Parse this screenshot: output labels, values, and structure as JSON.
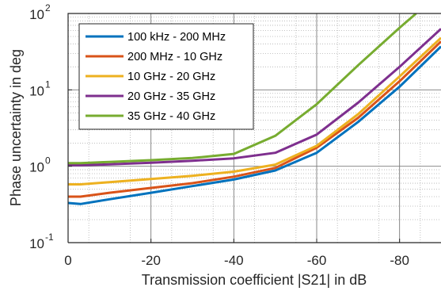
{
  "chart_data": {
    "type": "line",
    "title": "",
    "xlabel": "Transmission coefficient |S21| in dB",
    "ylabel": "Phase uncertainty in deg",
    "xlim": [
      0,
      -90
    ],
    "ylim": [
      0.1,
      100
    ],
    "yscale": "log",
    "grid": true,
    "minor_grid": true,
    "legend_position": "top-left",
    "x_ticks": [
      "0",
      "-20",
      "-40",
      "-60",
      "-80"
    ],
    "x_tick_values": [
      0,
      -20,
      -40,
      -60,
      -80
    ],
    "y_ticks": [
      {
        "value": 0.1,
        "base": "10",
        "exp": "-1"
      },
      {
        "value": 1,
        "base": "10",
        "exp": "0"
      },
      {
        "value": 10,
        "base": "10",
        "exp": "1"
      },
      {
        "value": 100,
        "base": "10",
        "exp": "2"
      }
    ],
    "series": [
      {
        "name": "100 kHz - 200 MHz",
        "color": "#0072BD",
        "points": [
          [
            0,
            0.33
          ],
          [
            -3,
            0.32
          ],
          [
            -10,
            0.37
          ],
          [
            -20,
            0.45
          ],
          [
            -30,
            0.55
          ],
          [
            -40,
            0.67
          ],
          [
            -50,
            0.88
          ],
          [
            -60,
            1.5
          ],
          [
            -70,
            3.8
          ],
          [
            -80,
            11
          ],
          [
            -90,
            37
          ]
        ]
      },
      {
        "name": "200 MHz - 10 GHz",
        "color": "#D95319",
        "points": [
          [
            0,
            0.4
          ],
          [
            -3,
            0.4
          ],
          [
            -10,
            0.45
          ],
          [
            -20,
            0.52
          ],
          [
            -30,
            0.6
          ],
          [
            -40,
            0.73
          ],
          [
            -50,
            0.95
          ],
          [
            -60,
            1.75
          ],
          [
            -70,
            4.3
          ],
          [
            -80,
            13
          ],
          [
            -90,
            43
          ]
        ]
      },
      {
        "name": "10 GHz - 20 GHz",
        "color": "#EDB120",
        "points": [
          [
            0,
            0.58
          ],
          [
            -3,
            0.58
          ],
          [
            -10,
            0.62
          ],
          [
            -20,
            0.68
          ],
          [
            -30,
            0.75
          ],
          [
            -40,
            0.85
          ],
          [
            -50,
            1.05
          ],
          [
            -60,
            1.85
          ],
          [
            -70,
            4.8
          ],
          [
            -80,
            15
          ],
          [
            -90,
            48
          ]
        ]
      },
      {
        "name": "20 GHz - 35 GHz",
        "color": "#7E2F8E",
        "points": [
          [
            0,
            1.03
          ],
          [
            -3,
            1.03
          ],
          [
            -10,
            1.06
          ],
          [
            -20,
            1.11
          ],
          [
            -30,
            1.18
          ],
          [
            -40,
            1.27
          ],
          [
            -50,
            1.5
          ],
          [
            -60,
            2.6
          ],
          [
            -70,
            6.8
          ],
          [
            -80,
            20
          ],
          [
            -90,
            63
          ]
        ]
      },
      {
        "name": "35 GHz - 40 GHz",
        "color": "#77AC30",
        "points": [
          [
            0,
            1.1
          ],
          [
            -3,
            1.1
          ],
          [
            -10,
            1.14
          ],
          [
            -20,
            1.2
          ],
          [
            -30,
            1.28
          ],
          [
            -40,
            1.45
          ],
          [
            -50,
            2.5
          ],
          [
            -60,
            6.5
          ],
          [
            -70,
            21
          ],
          [
            -80,
            65
          ],
          [
            -84,
            100
          ]
        ]
      }
    ]
  }
}
